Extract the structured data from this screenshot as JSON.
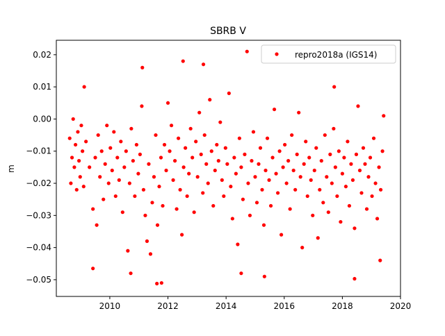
{
  "chart_data": {
    "type": "scatter",
    "title": "SBRB V",
    "y_label": "m",
    "x": [
      2008.62,
      2008.66,
      2008.7,
      2008.74,
      2008.78,
      2008.82,
      2008.86,
      2008.9,
      2008.94,
      2008.98,
      2009.02,
      2009.06,
      2009.1,
      2009.18,
      2009.3,
      2009.42,
      2009.5,
      2009.55,
      2009.6,
      2009.66,
      2009.72,
      2009.78,
      2009.84,
      2009.9,
      2009.96,
      2010.02,
      2010.08,
      2010.14,
      2010.2,
      2010.26,
      2010.32,
      2010.38,
      2010.44,
      2010.5,
      2010.56,
      2010.62,
      2010.68,
      2010.74,
      2010.8,
      2010.86,
      2010.92,
      2010.98,
      2011.04,
      2011.1,
      2011.16,
      2011.22,
      2011.28,
      2011.34,
      2011.4,
      2011.46,
      2011.52,
      2011.58,
      2011.64,
      2011.7,
      2011.76,
      2011.82,
      2011.88,
      2011.94,
      2012.0,
      2012.06,
      2012.12,
      2012.18,
      2012.24,
      2012.3,
      2012.36,
      2012.42,
      2012.48,
      2012.54,
      2012.6,
      2012.66,
      2012.72,
      2012.78,
      2012.84,
      2012.9,
      2012.96,
      2013.02,
      2013.08,
      2013.14,
      2013.2,
      2013.26,
      2013.32,
      2013.38,
      2013.44,
      2013.5,
      2013.56,
      2013.62,
      2013.68,
      2013.74,
      2013.8,
      2013.86,
      2013.92,
      2013.98,
      2014.04,
      2014.1,
      2014.16,
      2014.22,
      2014.28,
      2014.34,
      2014.4,
      2014.46,
      2014.52,
      2014.58,
      2014.64,
      2014.76,
      2014.82,
      2014.88,
      2014.94,
      2015.0,
      2015.06,
      2015.12,
      2015.18,
      2015.24,
      2015.3,
      2015.36,
      2015.42,
      2015.48,
      2015.54,
      2015.6,
      2015.66,
      2015.72,
      2015.78,
      2015.84,
      2015.9,
      2015.96,
      2016.02,
      2016.08,
      2016.14,
      2016.2,
      2016.26,
      2016.32,
      2016.38,
      2016.44,
      2016.5,
      2016.56,
      2016.62,
      2016.68,
      2016.74,
      2016.8,
      2016.86,
      2016.92,
      2016.98,
      2017.04,
      2017.1,
      2017.16,
      2017.22,
      2017.28,
      2017.34,
      2017.4,
      2017.46,
      2017.52,
      2017.58,
      2017.64,
      2017.7,
      2017.76,
      2017.82,
      2017.88,
      2017.94,
      2018.0,
      2018.06,
      2018.12,
      2018.18,
      2018.24,
      2018.3,
      2018.36,
      2018.42,
      2018.48,
      2018.54,
      2018.6,
      2018.66,
      2018.72,
      2018.78,
      2018.84,
      2018.9,
      2018.96,
      2019.02,
      2019.08,
      2019.14,
      2019.2,
      2019.26,
      2019.32,
      2019.38,
      2019.42,
      2014.72,
      2012.52,
      2013.22,
      2011.12,
      2009.12,
      2017.72,
      2009.42,
      2011.62,
      2011.78,
      2010.72,
      2014.52,
      2015.32,
      2018.42,
      2019.3
    ],
    "series": [
      {
        "name": "repro2018a (IGS14)",
        "color": "#ff0000",
        "values": [
          -0.006,
          -0.02,
          -0.012,
          0.0,
          -0.015,
          -0.008,
          -0.022,
          -0.004,
          -0.013,
          -0.018,
          -0.002,
          -0.01,
          -0.021,
          -0.007,
          -0.015,
          -0.028,
          -0.012,
          -0.033,
          -0.005,
          -0.018,
          -0.01,
          -0.025,
          -0.014,
          -0.002,
          -0.02,
          -0.009,
          -0.016,
          -0.004,
          -0.024,
          -0.012,
          -0.019,
          -0.007,
          -0.029,
          -0.015,
          -0.01,
          -0.041,
          -0.02,
          -0.003,
          -0.013,
          -0.024,
          -0.008,
          -0.017,
          -0.011,
          0.004,
          -0.022,
          -0.03,
          -0.038,
          -0.014,
          -0.042,
          -0.026,
          -0.018,
          -0.005,
          -0.033,
          -0.021,
          -0.012,
          -0.027,
          -0.008,
          -0.016,
          0.005,
          -0.01,
          -0.002,
          -0.019,
          -0.013,
          -0.028,
          -0.006,
          -0.022,
          -0.036,
          -0.015,
          -0.009,
          -0.024,
          -0.017,
          -0.003,
          -0.012,
          -0.029,
          -0.007,
          -0.018,
          0.002,
          -0.011,
          -0.023,
          -0.005,
          -0.014,
          -0.02,
          0.006,
          -0.01,
          -0.027,
          -0.016,
          -0.008,
          -0.013,
          -0.001,
          -0.019,
          -0.024,
          -0.009,
          -0.014,
          0.008,
          -0.021,
          -0.031,
          -0.012,
          -0.017,
          -0.039,
          -0.006,
          -0.015,
          -0.025,
          -0.011,
          -0.02,
          -0.03,
          -0.013,
          -0.004,
          -0.018,
          -0.026,
          -0.014,
          -0.009,
          -0.022,
          -0.033,
          -0.016,
          -0.006,
          -0.019,
          -0.027,
          -0.012,
          0.003,
          -0.017,
          -0.023,
          -0.01,
          -0.036,
          -0.015,
          -0.008,
          -0.02,
          -0.013,
          -0.028,
          -0.005,
          -0.016,
          -0.022,
          -0.011,
          0.002,
          -0.018,
          -0.04,
          -0.014,
          -0.007,
          -0.024,
          -0.012,
          -0.019,
          -0.03,
          -0.016,
          -0.009,
          -0.037,
          -0.022,
          -0.013,
          -0.026,
          -0.005,
          -0.018,
          -0.029,
          -0.011,
          -0.02,
          -0.003,
          -0.015,
          -0.024,
          -0.01,
          -0.032,
          -0.017,
          -0.012,
          -0.021,
          -0.007,
          -0.027,
          -0.014,
          -0.019,
          -0.034,
          -0.011,
          0.004,
          -0.016,
          -0.023,
          -0.009,
          -0.014,
          -0.028,
          -0.018,
          -0.012,
          -0.024,
          -0.006,
          -0.02,
          -0.031,
          -0.015,
          -0.022,
          -0.01,
          0.001,
          0.021,
          0.018,
          0.017,
          0.016,
          0.01,
          0.01,
          -0.0465,
          -0.0512,
          -0.051,
          -0.048,
          -0.048,
          -0.049,
          -0.0497,
          -0.044
        ]
      }
    ],
    "xlim": [
      2008.16,
      2020
    ],
    "xticks": [
      2010,
      2012,
      2014,
      2016,
      2018,
      2020
    ],
    "ylim": [
      -0.0552,
      0.0245
    ],
    "yticks": [
      {
        "value": -0.05,
        "label": "−0.05"
      },
      {
        "value": -0.04,
        "label": "−0.04"
      },
      {
        "value": -0.03,
        "label": "−0.03"
      },
      {
        "value": -0.02,
        "label": "−0.02"
      },
      {
        "value": -0.01,
        "label": "−0.01"
      },
      {
        "value": 0,
        "label": "0.00"
      },
      0.01,
      0.02
    ],
    "legend": "upper right"
  }
}
